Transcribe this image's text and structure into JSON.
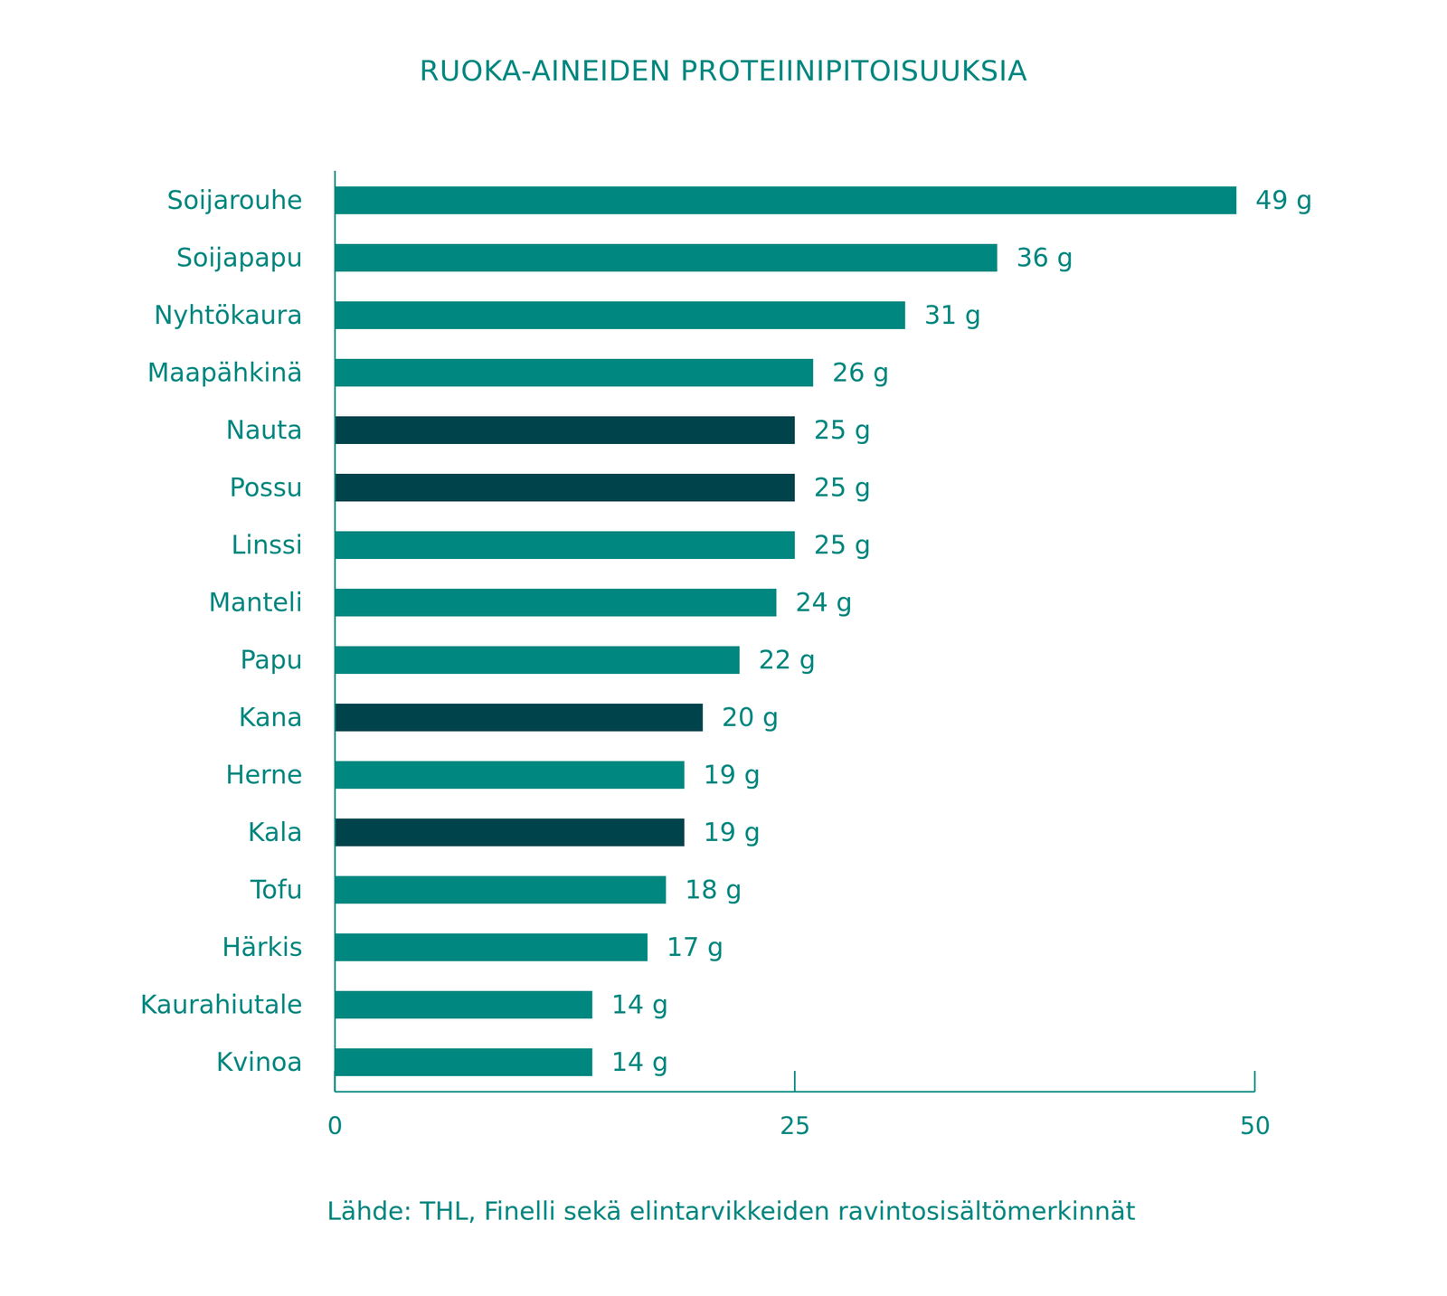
{
  "chart_data": {
    "type": "bar",
    "orientation": "horizontal",
    "title": "RUOKA-AINEIDEN PROTEIINIPITOISUUKSIA",
    "caption": "Lähde: THL, Finelli sekä elintarvikkeiden ravintosisältömerkinnät",
    "categories": [
      "Soijarouhe",
      "Soijapapu",
      "Nyhtökaura",
      "Maapähkinä",
      "Nauta",
      "Possu",
      "Linssi",
      "Manteli",
      "Papu",
      "Kana",
      "Herne",
      "Kala",
      "Tofu",
      "Härkis",
      "Kaurahiutale",
      "Kvinoa"
    ],
    "values": [
      49,
      36,
      31,
      26,
      25,
      25,
      25,
      24,
      22,
      20,
      19,
      19,
      18,
      17,
      14,
      14
    ],
    "value_labels": [
      "49 g",
      "36 g",
      "31 g",
      "26 g",
      "25 g",
      "25 g",
      "25 g",
      "24 g",
      "22 g",
      "20 g",
      "19 g",
      "19 g",
      "18 g",
      "17 g",
      "14 g",
      "14 g"
    ],
    "colors": [
      "#00877f",
      "#00877f",
      "#00877f",
      "#00877f",
      "#01434b",
      "#01434b",
      "#00877f",
      "#00877f",
      "#00877f",
      "#01434b",
      "#00877f",
      "#01434b",
      "#00877f",
      "#00877f",
      "#00877f",
      "#00877f"
    ],
    "data_labels": true,
    "xlim": [
      0,
      50
    ],
    "xticks": [
      0,
      25,
      50
    ],
    "grid": false
  }
}
